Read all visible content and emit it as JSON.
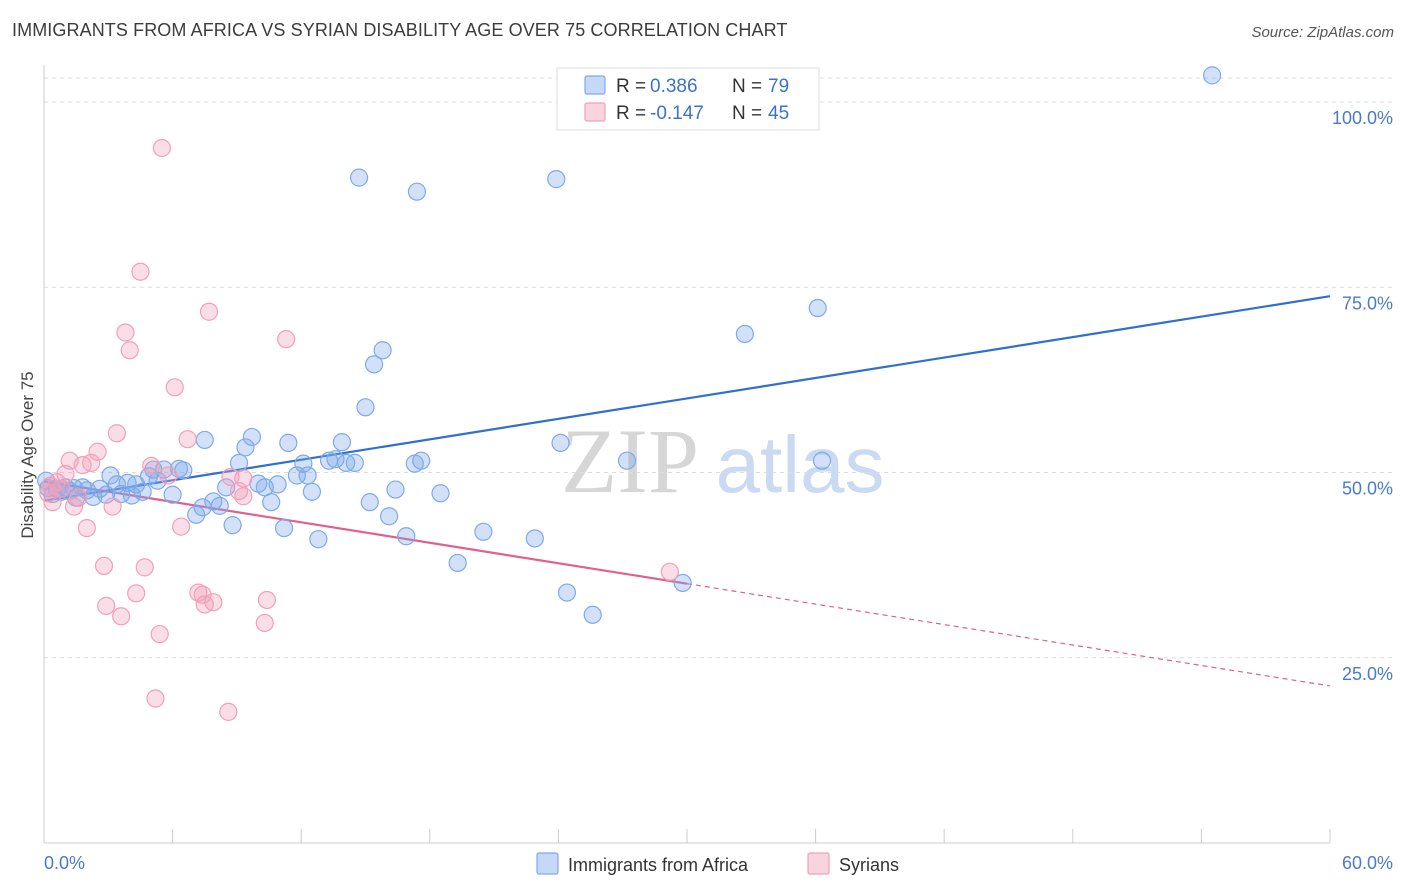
{
  "title": "IMMIGRANTS FROM AFRICA VS SYRIAN DISABILITY AGE OVER 75 CORRELATION CHART",
  "source": "Source: ZipAtlas.com",
  "watermark": {
    "zip": "ZIP",
    "atlas": "atlas"
  },
  "chart_data": {
    "type": "scatter",
    "xlabel": "",
    "ylabel": "Disability Age Over 75",
    "xlim": [
      0,
      60
    ],
    "ylim": [
      0,
      105
    ],
    "x_tick_labels": {
      "min": "0.0%",
      "max": "60.0%"
    },
    "y_ticks": [
      {
        "value": 100,
        "label": "100.0%"
      },
      {
        "value": 75,
        "label": "75.0%"
      },
      {
        "value": 50,
        "label": "50.0%"
      },
      {
        "value": 25,
        "label": "25.0%"
      }
    ],
    "grid": true,
    "legend_position": "top-center",
    "legend": [
      {
        "r_label": "R =",
        "r_value": "0.386",
        "n_label": "N =",
        "n_value": "79",
        "color": "#7eaaea"
      },
      {
        "r_label": "R =",
        "r_value": "-0.147",
        "n_label": "N =",
        "n_value": "45",
        "color": "#f2a0b9"
      }
    ],
    "series": [
      {
        "name": "Immigrants from Africa",
        "color": "#7eaaea",
        "line_color": "#2f6fcf",
        "trend": {
          "x0": 0,
          "y0": 46.2,
          "x1": 60,
          "y1": 73.8,
          "solid_until": 60
        },
        "points": [
          [
            0.2,
            47.9
          ],
          [
            0.4,
            47.1
          ],
          [
            0.6,
            47.8
          ],
          [
            0.8,
            47.4
          ],
          [
            1.0,
            48.0
          ],
          [
            1.2,
            47.5
          ],
          [
            1.5,
            46.6
          ],
          [
            1.8,
            48.0
          ],
          [
            2.0,
            47.6
          ],
          [
            2.3,
            46.7
          ],
          [
            2.6,
            47.8
          ],
          [
            2.9,
            47.0
          ],
          [
            3.1,
            49.6
          ],
          [
            3.4,
            48.4
          ],
          [
            3.6,
            47.1
          ],
          [
            3.9,
            48.6
          ],
          [
            4.1,
            46.9
          ],
          [
            4.3,
            48.4
          ],
          [
            4.6,
            47.4
          ],
          [
            4.9,
            49.5
          ],
          [
            5.1,
            50.4
          ],
          [
            5.3,
            48.9
          ],
          [
            5.6,
            50.4
          ],
          [
            6.0,
            47.0
          ],
          [
            6.3,
            50.5
          ],
          [
            6.5,
            50.3
          ],
          [
            7.1,
            44.3
          ],
          [
            7.4,
            45.3
          ],
          [
            7.5,
            54.4
          ],
          [
            7.9,
            46.1
          ],
          [
            8.2,
            45.5
          ],
          [
            8.5,
            48.0
          ],
          [
            8.8,
            42.9
          ],
          [
            9.1,
            51.3
          ],
          [
            9.4,
            53.4
          ],
          [
            9.7,
            54.8
          ],
          [
            10.0,
            48.5
          ],
          [
            10.3,
            48.0
          ],
          [
            10.6,
            46.0
          ],
          [
            10.9,
            48.4
          ],
          [
            11.2,
            42.5
          ],
          [
            11.4,
            54.0
          ],
          [
            11.8,
            49.6
          ],
          [
            12.1,
            51.2
          ],
          [
            12.3,
            49.6
          ],
          [
            12.5,
            47.4
          ],
          [
            12.8,
            41.0
          ],
          [
            13.3,
            51.6
          ],
          [
            13.6,
            51.8
          ],
          [
            13.9,
            54.1
          ],
          [
            14.1,
            51.3
          ],
          [
            14.5,
            51.3
          ],
          [
            15.0,
            58.8
          ],
          [
            15.4,
            64.6
          ],
          [
            15.8,
            66.5
          ],
          [
            15.2,
            46.0
          ],
          [
            16.1,
            44.1
          ],
          [
            16.4,
            47.7
          ],
          [
            16.9,
            41.4
          ],
          [
            17.3,
            51.2
          ],
          [
            17.6,
            51.6
          ],
          [
            18.5,
            47.2
          ],
          [
            19.3,
            37.8
          ],
          [
            20.5,
            42.0
          ],
          [
            22.9,
            41.1
          ],
          [
            24.1,
            54.0
          ],
          [
            24.4,
            33.8
          ],
          [
            25.6,
            30.8
          ],
          [
            27.2,
            51.6
          ],
          [
            29.8,
            35.1
          ],
          [
            32.7,
            68.7
          ],
          [
            36.1,
            72.2
          ],
          [
            36.3,
            51.6
          ],
          [
            14.7,
            89.8
          ],
          [
            17.4,
            87.9
          ],
          [
            23.9,
            89.6
          ],
          [
            54.5,
            103.6
          ],
          [
            0.1,
            48.9
          ],
          [
            1.4,
            47.9
          ]
        ]
      },
      {
        "name": "Syrians",
        "color": "#f2a0b9",
        "line_color": "#e0608f",
        "trend": {
          "x0": 0,
          "y0": 48.8,
          "x1": 60,
          "y1": 21.2,
          "solid_until": 30
        },
        "points": [
          [
            0.2,
            47.2
          ],
          [
            0.4,
            46.0
          ],
          [
            0.6,
            48.7
          ],
          [
            0.8,
            47.8
          ],
          [
            1.0,
            49.8
          ],
          [
            1.2,
            51.6
          ],
          [
            1.4,
            45.4
          ],
          [
            1.6,
            46.6
          ],
          [
            1.8,
            51.0
          ],
          [
            2.0,
            42.5
          ],
          [
            2.2,
            51.3
          ],
          [
            2.5,
            52.8
          ],
          [
            2.8,
            37.4
          ],
          [
            2.9,
            32.0
          ],
          [
            3.2,
            45.4
          ],
          [
            3.4,
            55.3
          ],
          [
            3.6,
            30.6
          ],
          [
            3.8,
            68.9
          ],
          [
            4.0,
            66.5
          ],
          [
            4.3,
            33.7
          ],
          [
            4.5,
            77.1
          ],
          [
            4.7,
            37.2
          ],
          [
            5.0,
            50.9
          ],
          [
            5.2,
            19.5
          ],
          [
            5.4,
            28.2
          ],
          [
            5.5,
            93.8
          ],
          [
            5.8,
            49.6
          ],
          [
            6.1,
            61.5
          ],
          [
            6.4,
            42.7
          ],
          [
            6.7,
            54.5
          ],
          [
            7.2,
            33.8
          ],
          [
            7.5,
            32.2
          ],
          [
            7.7,
            71.7
          ],
          [
            7.9,
            32.5
          ],
          [
            8.6,
            17.7
          ],
          [
            8.7,
            49.4
          ],
          [
            9.1,
            47.5
          ],
          [
            9.3,
            49.2
          ],
          [
            10.3,
            29.7
          ],
          [
            10.4,
            32.8
          ],
          [
            11.3,
            68.0
          ],
          [
            7.4,
            33.5
          ],
          [
            9.3,
            46.8
          ],
          [
            0.3,
            48.2
          ],
          [
            29.2,
            36.6
          ]
        ]
      }
    ]
  },
  "bottom_legend": [
    {
      "label": "Immigrants from Africa",
      "color": "#7eaaea"
    },
    {
      "label": "Syrians",
      "color": "#f2a0b9"
    }
  ]
}
